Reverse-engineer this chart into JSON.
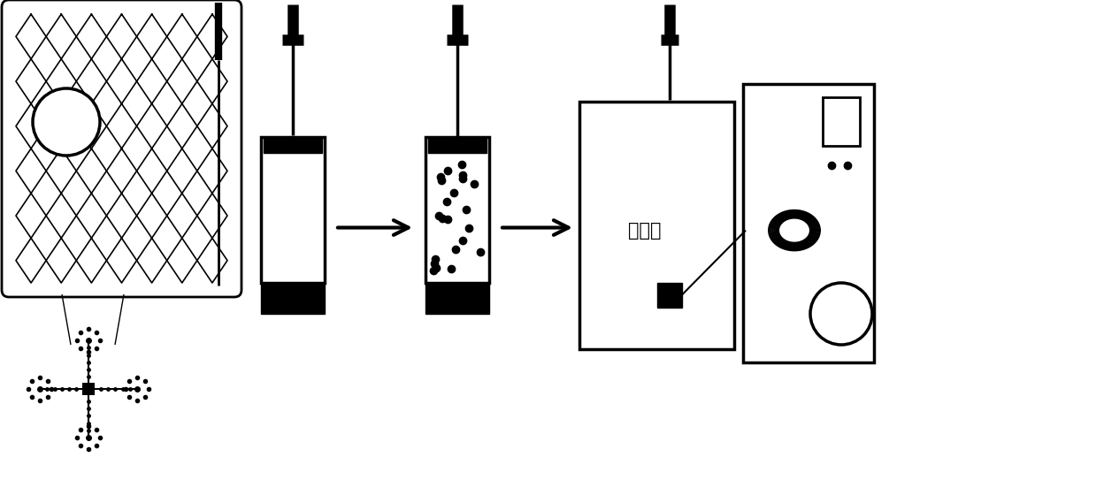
{
  "bg_color": "#ffffff",
  "line_color": "#000000",
  "text_detector": "检测器",
  "fig_width": 12.39,
  "fig_height": 5.43
}
